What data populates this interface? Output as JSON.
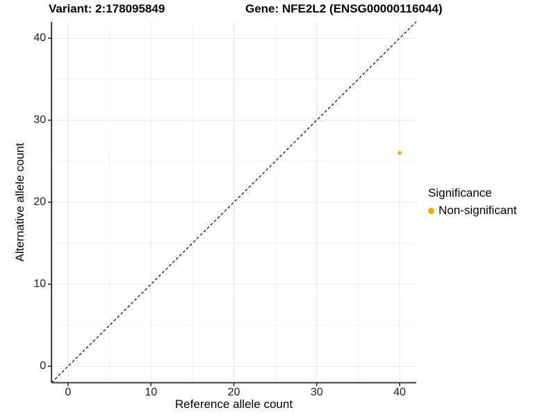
{
  "header": {
    "variant_title": "Variant: 2:178095849",
    "gene_title": "Gene: NFE2L2 (ENSG00000116044)"
  },
  "chart_data": {
    "type": "scatter",
    "xlabel": "Reference allele count",
    "ylabel": "Alternative allele count",
    "xlim": [
      -2,
      42
    ],
    "ylim": [
      -2,
      42
    ],
    "x_ticks": [
      0,
      10,
      20,
      30,
      40
    ],
    "y_ticks": [
      0,
      10,
      20,
      30,
      40
    ],
    "x_minor_ticks": [
      5,
      15,
      25,
      35
    ],
    "y_minor_ticks": [
      5,
      15,
      25,
      35
    ],
    "grid": true,
    "series": [
      {
        "name": "Non-significant",
        "color": "#FFA500",
        "points": [
          {
            "x": 40,
            "y": 26
          }
        ]
      }
    ],
    "reference_line": {
      "type": "identity y=x",
      "style": "dashed",
      "color": "#000000"
    },
    "legend": {
      "title": "Significance",
      "position": "right",
      "items": [
        {
          "label": "Non-significant",
          "color": "#FFA500"
        }
      ]
    },
    "style": {
      "grid_major_color": "#E6E6E6",
      "grid_minor_color": "#F2F2F2",
      "axis_color": "#3C3C3C",
      "tick_label_color": "#1A1A1A",
      "point_radius": 2.8
    }
  }
}
